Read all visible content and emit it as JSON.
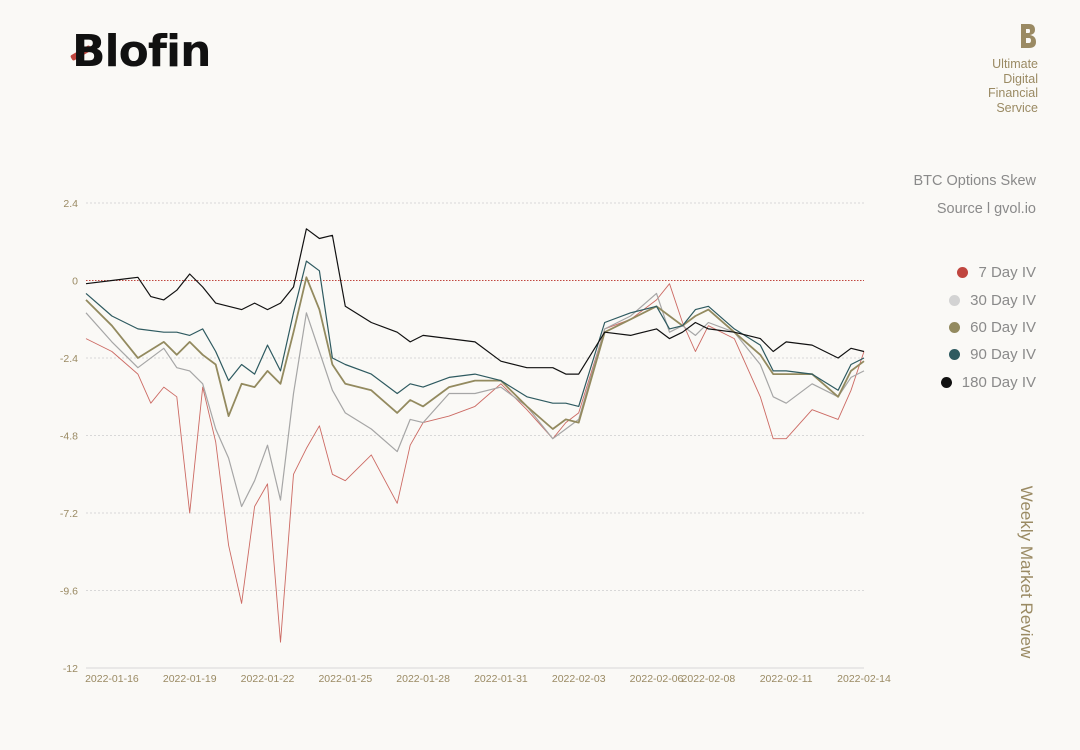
{
  "header": {
    "logo_text": "Blofin",
    "brand_mark_icon": "b-monogram-icon",
    "tagline": [
      "Ultimate",
      "Digital",
      "Financial",
      "Service"
    ]
  },
  "side_label": "Weekly Market Review",
  "chart_data": {
    "type": "line",
    "title": "BTC Options Skew",
    "source": "Source l gvol.io",
    "ylim": [
      -12,
      2.4
    ],
    "yticks": [
      2.4,
      0,
      -2.4,
      -4.8,
      -7.2,
      -9.6,
      -12
    ],
    "ytick_labels": [
      "2.4",
      "0",
      "-2.4",
      "-4.8",
      "-7.2",
      "-9.6",
      "-12"
    ],
    "x_ticks": [
      "2022-01-16",
      "2022-01-19",
      "2022-01-22",
      "2022-01-25",
      "2022-01-28",
      "2022-01-31",
      "2022-02-03",
      "2022-02-06",
      "2022-02-08",
      "2022-02-11",
      "2022-02-14"
    ],
    "x_range": [
      "2022-01-15",
      "2022-02-14"
    ],
    "grid": true,
    "zero_line": true,
    "legend_position": "right",
    "series": [
      {
        "name": "7 Day IV",
        "color": "#c0463f",
        "points": [
          [
            "2022-01-15",
            -1.8
          ],
          [
            "2022-01-16",
            -2.2
          ],
          [
            "2022-01-17",
            -2.9
          ],
          [
            "2022-01-17T12:00",
            -3.8
          ],
          [
            "2022-01-18",
            -3.3
          ],
          [
            "2022-01-18T12:00",
            -3.6
          ],
          [
            "2022-01-19",
            -7.2
          ],
          [
            "2022-01-19T12:00",
            -3.3
          ],
          [
            "2022-01-20",
            -5
          ],
          [
            "2022-01-20T12:00",
            -8.2
          ],
          [
            "2022-01-21",
            -10
          ],
          [
            "2022-01-21T12:00",
            -7
          ],
          [
            "2022-01-22",
            -6.3
          ],
          [
            "2022-01-22T12:00",
            -11.2
          ],
          [
            "2022-01-23",
            -6
          ],
          [
            "2022-01-23T12:00",
            -5.2
          ],
          [
            "2022-01-24",
            -4.5
          ],
          [
            "2022-01-24T12:00",
            -6
          ],
          [
            "2022-01-25",
            -6.2
          ],
          [
            "2022-01-26",
            -5.4
          ],
          [
            "2022-01-27",
            -6.9
          ],
          [
            "2022-01-27T12:00",
            -5.1
          ],
          [
            "2022-01-28",
            -4.4
          ],
          [
            "2022-01-29",
            -4.2
          ],
          [
            "2022-01-30",
            -3.9
          ],
          [
            "2022-01-31",
            -3.2
          ],
          [
            "2022-02-01",
            -4
          ],
          [
            "2022-02-02",
            -4.9
          ],
          [
            "2022-02-02T12:00",
            -4.4
          ],
          [
            "2022-02-03",
            -4.1
          ],
          [
            "2022-02-04",
            -1.5
          ],
          [
            "2022-02-05",
            -1.2
          ],
          [
            "2022-02-06",
            -0.6
          ],
          [
            "2022-02-06T12:00",
            -0.1
          ],
          [
            "2022-02-07",
            -1.3
          ],
          [
            "2022-02-07T12:00",
            -2.2
          ],
          [
            "2022-02-08",
            -1.4
          ],
          [
            "2022-02-09",
            -1.8
          ],
          [
            "2022-02-10",
            -3.6
          ],
          [
            "2022-02-10T12:00",
            -4.9
          ],
          [
            "2022-02-11",
            -4.9
          ],
          [
            "2022-02-12",
            -4
          ],
          [
            "2022-02-13",
            -4.3
          ],
          [
            "2022-02-13T12:00",
            -3.4
          ],
          [
            "2022-02-14",
            -2.2
          ]
        ]
      },
      {
        "name": "30 Day IV",
        "color": "#a6a6a6",
        "points": [
          [
            "2022-01-15",
            -1
          ],
          [
            "2022-01-16",
            -1.9
          ],
          [
            "2022-01-17",
            -2.7
          ],
          [
            "2022-01-18",
            -2.1
          ],
          [
            "2022-01-18T12:00",
            -2.7
          ],
          [
            "2022-01-19",
            -2.8
          ],
          [
            "2022-01-19T12:00",
            -3.2
          ],
          [
            "2022-01-20",
            -4.6
          ],
          [
            "2022-01-20T12:00",
            -5.5
          ],
          [
            "2022-01-21",
            -7
          ],
          [
            "2022-01-21T12:00",
            -6.2
          ],
          [
            "2022-01-22",
            -5.1
          ],
          [
            "2022-01-22T12:00",
            -6.8
          ],
          [
            "2022-01-23",
            -3.5
          ],
          [
            "2022-01-23T12:00",
            -1
          ],
          [
            "2022-01-24",
            -2.2
          ],
          [
            "2022-01-24T12:00",
            -3.4
          ],
          [
            "2022-01-25",
            -4.1
          ],
          [
            "2022-01-26",
            -4.6
          ],
          [
            "2022-01-27",
            -5.3
          ],
          [
            "2022-01-27T12:00",
            -4.3
          ],
          [
            "2022-01-28",
            -4.4
          ],
          [
            "2022-01-29",
            -3.5
          ],
          [
            "2022-01-30",
            -3.5
          ],
          [
            "2022-01-31",
            -3.3
          ],
          [
            "2022-02-01",
            -3.9
          ],
          [
            "2022-02-02",
            -4.9
          ],
          [
            "2022-02-02T12:00",
            -4.6
          ],
          [
            "2022-02-03",
            -4.3
          ],
          [
            "2022-02-04",
            -1.5
          ],
          [
            "2022-02-05",
            -1.1
          ],
          [
            "2022-02-06",
            -0.4
          ],
          [
            "2022-02-06T12:00",
            -1.6
          ],
          [
            "2022-02-07",
            -1.4
          ],
          [
            "2022-02-07T12:00",
            -1.7
          ],
          [
            "2022-02-08",
            -1.3
          ],
          [
            "2022-02-09",
            -1.6
          ],
          [
            "2022-02-10",
            -2.6
          ],
          [
            "2022-02-10T12:00",
            -3.6
          ],
          [
            "2022-02-11",
            -3.8
          ],
          [
            "2022-02-12",
            -3.2
          ],
          [
            "2022-02-13",
            -3.6
          ],
          [
            "2022-02-13T12:00",
            -3
          ],
          [
            "2022-02-14",
            -2.8
          ]
        ]
      },
      {
        "name": "60 Day IV",
        "color": "#938a5f",
        "points": [
          [
            "2022-01-15",
            -0.6
          ],
          [
            "2022-01-16",
            -1.4
          ],
          [
            "2022-01-17",
            -2.4
          ],
          [
            "2022-01-18",
            -1.9
          ],
          [
            "2022-01-18T12:00",
            -2.3
          ],
          [
            "2022-01-19",
            -1.9
          ],
          [
            "2022-01-19T12:00",
            -2.3
          ],
          [
            "2022-01-20",
            -2.6
          ],
          [
            "2022-01-20T12:00",
            -4.2
          ],
          [
            "2022-01-21",
            -3.2
          ],
          [
            "2022-01-21T12:00",
            -3.3
          ],
          [
            "2022-01-22",
            -2.8
          ],
          [
            "2022-01-22T12:00",
            -3.2
          ],
          [
            "2022-01-23",
            -1.6
          ],
          [
            "2022-01-23T12:00",
            0.1
          ],
          [
            "2022-01-24",
            -0.9
          ],
          [
            "2022-01-24T12:00",
            -2.6
          ],
          [
            "2022-01-25",
            -3.2
          ],
          [
            "2022-01-26",
            -3.4
          ],
          [
            "2022-01-27",
            -4.1
          ],
          [
            "2022-01-27T12:00",
            -3.7
          ],
          [
            "2022-01-28",
            -3.9
          ],
          [
            "2022-01-29",
            -3.3
          ],
          [
            "2022-01-30",
            -3.1
          ],
          [
            "2022-01-31",
            -3.1
          ],
          [
            "2022-02-01",
            -3.9
          ],
          [
            "2022-02-02",
            -4.6
          ],
          [
            "2022-02-02T12:00",
            -4.3
          ],
          [
            "2022-02-03",
            -4.4
          ],
          [
            "2022-02-04",
            -1.6
          ],
          [
            "2022-02-05",
            -1.2
          ],
          [
            "2022-02-06",
            -0.8
          ],
          [
            "2022-02-06T12:00",
            -1.1
          ],
          [
            "2022-02-07",
            -1.4
          ],
          [
            "2022-02-07T12:00",
            -1.1
          ],
          [
            "2022-02-08",
            -0.9
          ],
          [
            "2022-02-09",
            -1.6
          ],
          [
            "2022-02-10",
            -2.3
          ],
          [
            "2022-02-10T12:00",
            -2.9
          ],
          [
            "2022-02-11",
            -2.9
          ],
          [
            "2022-02-12",
            -2.9
          ],
          [
            "2022-02-13",
            -3.6
          ],
          [
            "2022-02-13T12:00",
            -2.8
          ],
          [
            "2022-02-14",
            -2.5
          ]
        ]
      },
      {
        "name": "90 Day IV",
        "color": "#2e5a60",
        "points": [
          [
            "2022-01-15",
            -0.4
          ],
          [
            "2022-01-16",
            -1.1
          ],
          [
            "2022-01-17",
            -1.5
          ],
          [
            "2022-01-18",
            -1.6
          ],
          [
            "2022-01-18T12:00",
            -1.6
          ],
          [
            "2022-01-19",
            -1.7
          ],
          [
            "2022-01-19T12:00",
            -1.5
          ],
          [
            "2022-01-20",
            -2.2
          ],
          [
            "2022-01-20T12:00",
            -3.1
          ],
          [
            "2022-01-21",
            -2.6
          ],
          [
            "2022-01-21T12:00",
            -2.9
          ],
          [
            "2022-01-22",
            -2
          ],
          [
            "2022-01-22T12:00",
            -2.8
          ],
          [
            "2022-01-23",
            -1
          ],
          [
            "2022-01-23T12:00",
            0.6
          ],
          [
            "2022-01-24",
            0.3
          ],
          [
            "2022-01-24T12:00",
            -2.4
          ],
          [
            "2022-01-25",
            -2.6
          ],
          [
            "2022-01-26",
            -2.9
          ],
          [
            "2022-01-27",
            -3.5
          ],
          [
            "2022-01-27T12:00",
            -3.2
          ],
          [
            "2022-01-28",
            -3.3
          ],
          [
            "2022-01-29",
            -3
          ],
          [
            "2022-01-30",
            -2.9
          ],
          [
            "2022-01-31",
            -3.1
          ],
          [
            "2022-02-01",
            -3.6
          ],
          [
            "2022-02-02",
            -3.8
          ],
          [
            "2022-02-02T12:00",
            -3.8
          ],
          [
            "2022-02-03",
            -3.9
          ],
          [
            "2022-02-04",
            -1.3
          ],
          [
            "2022-02-05",
            -1
          ],
          [
            "2022-02-06",
            -0.8
          ],
          [
            "2022-02-06T12:00",
            -1.5
          ],
          [
            "2022-02-07",
            -1.4
          ],
          [
            "2022-02-07T12:00",
            -0.9
          ],
          [
            "2022-02-08",
            -0.8
          ],
          [
            "2022-02-09",
            -1.5
          ],
          [
            "2022-02-10",
            -2
          ],
          [
            "2022-02-10T12:00",
            -2.8
          ],
          [
            "2022-02-11",
            -2.8
          ],
          [
            "2022-02-12",
            -2.9
          ],
          [
            "2022-02-13",
            -3.4
          ],
          [
            "2022-02-13T12:00",
            -2.6
          ],
          [
            "2022-02-14",
            -2.4
          ]
        ]
      },
      {
        "name": "180 Day IV",
        "color": "#111111",
        "points": [
          [
            "2022-01-15",
            -0.1
          ],
          [
            "2022-01-16",
            0
          ],
          [
            "2022-01-17",
            0.1
          ],
          [
            "2022-01-17T12:00",
            -0.5
          ],
          [
            "2022-01-18",
            -0.6
          ],
          [
            "2022-01-18T12:00",
            -0.3
          ],
          [
            "2022-01-19",
            0.2
          ],
          [
            "2022-01-19T12:00",
            -0.2
          ],
          [
            "2022-01-20",
            -0.7
          ],
          [
            "2022-01-20T12:00",
            -0.8
          ],
          [
            "2022-01-21",
            -0.9
          ],
          [
            "2022-01-21T12:00",
            -0.7
          ],
          [
            "2022-01-22",
            -0.9
          ],
          [
            "2022-01-22T12:00",
            -0.7
          ],
          [
            "2022-01-23",
            -0.2
          ],
          [
            "2022-01-23T12:00",
            1.6
          ],
          [
            "2022-01-24",
            1.3
          ],
          [
            "2022-01-24T12:00",
            1.4
          ],
          [
            "2022-01-25",
            -0.8
          ],
          [
            "2022-01-26",
            -1.3
          ],
          [
            "2022-01-27",
            -1.6
          ],
          [
            "2022-01-27T12:00",
            -1.9
          ],
          [
            "2022-01-28",
            -1.7
          ],
          [
            "2022-01-29",
            -1.8
          ],
          [
            "2022-01-30",
            -1.9
          ],
          [
            "2022-01-31",
            -2.5
          ],
          [
            "2022-02-01",
            -2.7
          ],
          [
            "2022-02-02",
            -2.7
          ],
          [
            "2022-02-02T12:00",
            -2.9
          ],
          [
            "2022-02-03",
            -2.9
          ],
          [
            "2022-02-04",
            -1.6
          ],
          [
            "2022-02-05",
            -1.7
          ],
          [
            "2022-02-06",
            -1.5
          ],
          [
            "2022-02-06T12:00",
            -1.8
          ],
          [
            "2022-02-07",
            -1.6
          ],
          [
            "2022-02-07T12:00",
            -1.3
          ],
          [
            "2022-02-08",
            -1.5
          ],
          [
            "2022-02-09",
            -1.6
          ],
          [
            "2022-02-10",
            -1.8
          ],
          [
            "2022-02-10T12:00",
            -2.2
          ],
          [
            "2022-02-11",
            -1.9
          ],
          [
            "2022-02-12",
            -2
          ],
          [
            "2022-02-13",
            -2.4
          ],
          [
            "2022-02-13T12:00",
            -2.1
          ],
          [
            "2022-02-14",
            -2.2
          ]
        ]
      }
    ]
  }
}
